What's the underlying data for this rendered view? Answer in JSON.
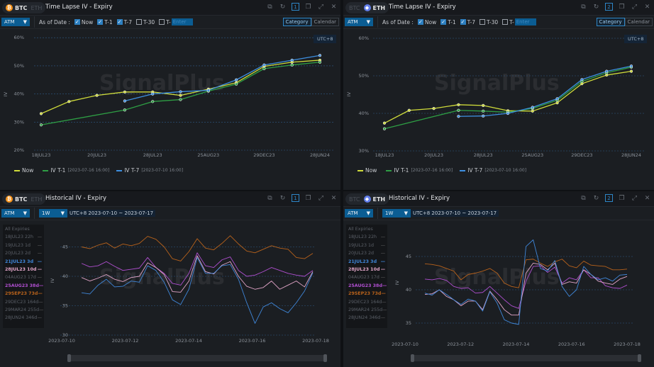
{
  "coins": {
    "btc": "BTC",
    "eth": "ETH"
  },
  "icons": [
    "external-link-icon",
    "refresh-icon",
    "window-number",
    "copy-icon",
    "expand-icon",
    "close-icon"
  ],
  "watermark": "SignalPlus",
  "timelapse": {
    "title": "Time Lapse IV - Expiry",
    "atm": "ATM",
    "as_of": "As of Date :",
    "checks": [
      {
        "label": "Now",
        "checked": true
      },
      {
        "label": "T-1",
        "checked": true
      },
      {
        "label": "T-7",
        "checked": true
      },
      {
        "label": "T-30",
        "checked": false
      },
      {
        "label": "T-",
        "checked": false
      }
    ],
    "enter_placeholder": "Enter",
    "category": "Category",
    "calendar": "Calendar",
    "utc": "UTC+8",
    "ylabel": "IV",
    "legend": [
      {
        "name": "Now",
        "sub": ""
      },
      {
        "name": "IV T-1",
        "sub": "[2023-07-16 16:00]"
      },
      {
        "name": "IV T-7",
        "sub": "[2023-07-10 16:00]"
      }
    ]
  },
  "historical": {
    "title": "Historical IV - Expiry",
    "atm": "ATM",
    "period": "1W",
    "range": "UTC+8 2023-07-10 ~ 2023-07-17",
    "ylabel": "IV",
    "expiries": [
      {
        "label": "All Expiries",
        "active": false
      },
      {
        "label": "18JUL23 22h",
        "active": false
      },
      {
        "label": "19JUL23 1d",
        "active": false
      },
      {
        "label": "20JUL23 2d",
        "active": false
      },
      {
        "label": "21JUL23 3d",
        "active": true,
        "color": "#3f86d8"
      },
      {
        "label": "28JUL23 10d",
        "active": true,
        "color": "#e3a6c9"
      },
      {
        "label": "04AUG23 17d",
        "active": false
      },
      {
        "label": "25AUG23 38d",
        "active": true,
        "color": "#b04fd0"
      },
      {
        "label": "29SEP23 73d",
        "active": true,
        "color": "#b8621b"
      },
      {
        "label": "29DEC23 164d",
        "active": false
      },
      {
        "label": "29MAR24 255d",
        "active": false
      },
      {
        "label": "28JUN24 346d",
        "active": false
      }
    ]
  },
  "colors": {
    "now": "#d0dc3a",
    "t1": "#2e9e44",
    "t7": "#3d8fe0",
    "btc": "#f7931a",
    "eth": "#627eea",
    "accent": "#2d86c7"
  },
  "chart_data": [
    {
      "panel": "BTC Time Lapse IV - Expiry",
      "type": "line",
      "categories": [
        "18JUL23",
        "19JUL23",
        "20JUL23",
        "21JUL23",
        "28JUL23",
        "04AUG23",
        "25AUG23",
        "29SEP23",
        "29DEC23",
        "29MAR24",
        "28JUN24"
      ],
      "tick_labels": [
        "18JUL23",
        "20JUL23",
        "28JUL23",
        "25AUG23",
        "29DEC23",
        "28JUN24"
      ],
      "yticks": [
        "20%",
        "30%",
        "40%",
        "50%",
        "60%"
      ],
      "ylim": [
        20,
        60
      ],
      "ylabel": "IV",
      "grid": true,
      "legend": "bottom-left",
      "series": [
        {
          "name": "Now",
          "values": [
            33,
            37.3,
            39.5,
            40.7,
            40.7,
            39.5,
            41.7,
            44,
            49.8,
            51.3,
            52
          ]
        },
        {
          "name": "IV T-1",
          "values": [
            29,
            null,
            null,
            34.3,
            37.3,
            38,
            41,
            43.5,
            49,
            50.3,
            51.3
          ]
        },
        {
          "name": "IV T-7",
          "values": [
            null,
            null,
            null,
            37.5,
            40,
            40.8,
            41.3,
            45,
            50.3,
            52,
            53.7
          ]
        }
      ]
    },
    {
      "panel": "ETH Time Lapse IV - Expiry",
      "type": "line",
      "categories": [
        "18JUL23",
        "19JUL23",
        "20JUL23",
        "21JUL23",
        "28JUL23",
        "04AUG23",
        "25AUG23",
        "29SEP23",
        "29DEC23",
        "29MAR24",
        "28JUN24"
      ],
      "tick_labels": [
        "18JUL23",
        "20JUL23",
        "28JUL23",
        "25AUG23",
        "29DEC23",
        "28JUN24"
      ],
      "yticks": [
        "30%",
        "40%",
        "50%",
        "60%"
      ],
      "ylim": [
        30,
        60
      ],
      "ylabel": "IV",
      "grid": true,
      "legend": "bottom-left",
      "series": [
        {
          "name": "Now",
          "values": [
            37.4,
            40.8,
            41.3,
            42.3,
            42.1,
            40.7,
            40.6,
            42.8,
            47.9,
            50.2,
            51.2
          ]
        },
        {
          "name": "IV T-1",
          "values": [
            35.9,
            null,
            null,
            40.8,
            40.6,
            40.3,
            41.3,
            43.5,
            48.5,
            50.8,
            52.3
          ]
        },
        {
          "name": "IV T-7",
          "values": [
            null,
            null,
            null,
            39.2,
            39.3,
            40,
            41.6,
            43.9,
            49,
            51.2,
            52.6
          ]
        }
      ]
    },
    {
      "panel": "BTC Historical IV - Expiry",
      "type": "line",
      "x_range": [
        "2023-07-10",
        "2023-07-17"
      ],
      "xticks": [
        "2023-07-10",
        "2023-07-12",
        "2023-07-14",
        "2023-07-16",
        "2023-07-18"
      ],
      "yticks": [
        "30",
        "35",
        "40",
        "45"
      ],
      "ylim": [
        30,
        47.5
      ],
      "ylabel": "IV",
      "grid": true,
      "series": [
        {
          "name": "29SEP23 73d",
          "values": [
            45,
            44.7,
            45.3,
            45.7,
            44.8,
            45.5,
            45.2,
            45.6,
            46.8,
            46.3,
            45,
            43,
            42.6,
            44.2,
            46.4,
            44.8,
            44.5,
            45.6,
            46.9,
            45.5,
            44.3,
            44,
            44.6,
            45.2,
            44.8,
            44.6,
            43.2,
            43,
            43.9
          ]
        },
        {
          "name": "25AUG23 38d",
          "values": [
            42.2,
            41.6,
            41.8,
            42.5,
            41.7,
            41,
            41.2,
            41.4,
            43.2,
            41.5,
            40.5,
            38.8,
            38.5,
            40.5,
            44,
            41.8,
            41.5,
            42.8,
            43.3,
            41,
            40,
            40.2,
            40.8,
            41.5,
            41,
            40.5,
            40.2,
            40,
            41
          ]
        },
        {
          "name": "28JUL23 10d",
          "values": [
            39.8,
            39.2,
            39.7,
            40.3,
            39.5,
            39.1,
            39.8,
            40,
            42.3,
            41.5,
            40.3,
            37.4,
            37.3,
            39.2,
            43.5,
            40.8,
            40.4,
            41.9,
            42.5,
            40,
            38.3,
            37.8,
            38.1,
            39.2,
            37.8,
            38.5,
            39.2,
            38.2,
            40.8
          ]
        },
        {
          "name": "21JUL23 3d",
          "values": [
            37.2,
            37,
            38.5,
            39.5,
            38.2,
            38.3,
            39.2,
            39,
            41.8,
            41,
            39,
            36,
            35.2,
            37.8,
            43.2,
            40.5,
            40.5,
            41.8,
            42,
            39.5,
            35.5,
            32,
            34.8,
            35.5,
            34.5,
            33.8,
            35.5,
            37.5,
            40.6
          ]
        }
      ]
    },
    {
      "panel": "ETH Historical IV - Expiry",
      "type": "line",
      "x_range": [
        "2023-07-10",
        "2023-07-17"
      ],
      "xticks": [
        "2023-07-10",
        "2023-07-12",
        "2023-07-14",
        "2023-07-16",
        "2023-07-18"
      ],
      "yticks": [
        "35",
        "40",
        "45"
      ],
      "ylim": [
        33,
        48
      ],
      "ylabel": "IV",
      "grid": true,
      "series": [
        {
          "name": "29SEP23 73d",
          "values": [
            43.9,
            43.8,
            43.6,
            43.2,
            42.8,
            41.5,
            42.3,
            42.5,
            42.8,
            43.2,
            42.5,
            41,
            40.5,
            40.3,
            44.5,
            44.6,
            44,
            43.5,
            44.2,
            44.6,
            43.6,
            43.3,
            44.3,
            43.7,
            43.6,
            43.5,
            43,
            43,
            43.1
          ]
        },
        {
          "name": "25AUG23 38d",
          "values": [
            41.6,
            41.5,
            41.7,
            41.4,
            40.5,
            40.2,
            40.3,
            39.5,
            39.6,
            40.5,
            39.5,
            38.5,
            37.6,
            37.2,
            41.3,
            43.5,
            43.6,
            42.6,
            43.4,
            41,
            41.8,
            41.5,
            43,
            41.8,
            41.8,
            40.6,
            40.3,
            40.2,
            40.7
          ]
        },
        {
          "name": "28JUL23 10d",
          "values": [
            39.3,
            39.4,
            40,
            39,
            38.5,
            37.6,
            38.3,
            38.3,
            37,
            39.8,
            38.5,
            37,
            36.2,
            36.2,
            42.5,
            44,
            43.8,
            43,
            44,
            40.8,
            41.2,
            41,
            43,
            42.3,
            41.3,
            41,
            40.8,
            41.6,
            42
          ]
        },
        {
          "name": "21JUL23 3d",
          "values": [
            39.5,
            39.2,
            40,
            39.3,
            38.5,
            37.8,
            38.6,
            38.3,
            36.8,
            39.7,
            38,
            35.5,
            35,
            34.8,
            46.5,
            47.5,
            43.2,
            42.8,
            44.4,
            40.5,
            39,
            40,
            43.5,
            42.3,
            41.5,
            41.8,
            41.3,
            42.2,
            42.3
          ]
        }
      ]
    }
  ]
}
